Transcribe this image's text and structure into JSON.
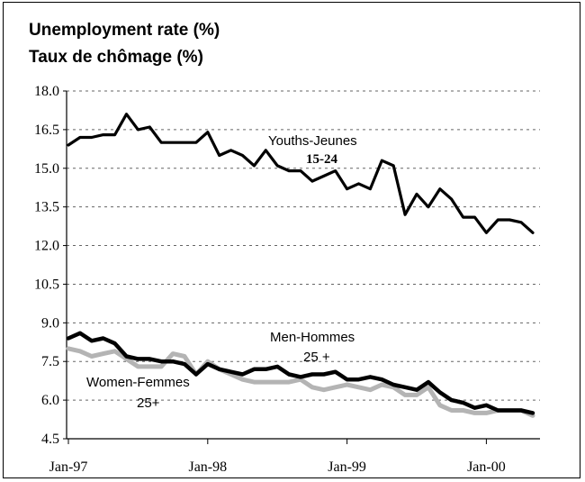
{
  "chart_data": {
    "type": "line",
    "title": "Unemployment rate (%)",
    "subtitle": "Taux de chômage (%)",
    "xlabel": "",
    "ylabel": "",
    "ylim": [
      4.5,
      18.0
    ],
    "y_ticks": [
      "18.0",
      "16.5",
      "15.0",
      "13.5",
      "12.0",
      "10.5",
      "9.0",
      "7.5",
      "6.0",
      "4.5"
    ],
    "x_tick_labels": [
      "Jan-97",
      "Jan-98",
      "Jan-99",
      "Jan-00"
    ],
    "x_tick_months": [
      0,
      12,
      24,
      36
    ],
    "grid": true,
    "colors": {
      "youths": "#000000",
      "men": "#000000",
      "women": "#b4b4b4"
    },
    "series": [
      {
        "key": "youths",
        "values": [
          15.9,
          16.2,
          16.2,
          16.3,
          16.3,
          17.1,
          16.5,
          16.6,
          16.0,
          16.0,
          16.0,
          16.0,
          16.4,
          15.5,
          15.7,
          15.5,
          15.1,
          15.7,
          15.1,
          14.9,
          14.9,
          14.5,
          14.7,
          14.9,
          14.2,
          14.4,
          14.2,
          15.3,
          15.1,
          13.2,
          14.0,
          13.5,
          14.2,
          13.8,
          13.1,
          13.1,
          12.5,
          13.0,
          13.0,
          12.9,
          12.5
        ]
      },
      {
        "key": "men",
        "values": [
          8.4,
          8.6,
          8.3,
          8.4,
          8.2,
          7.7,
          7.6,
          7.6,
          7.5,
          7.5,
          7.4,
          7.0,
          7.4,
          7.2,
          7.1,
          7.0,
          7.2,
          7.2,
          7.3,
          7.0,
          6.9,
          7.0,
          7.0,
          7.1,
          6.8,
          6.8,
          6.9,
          6.8,
          6.6,
          6.5,
          6.4,
          6.7,
          6.3,
          6.0,
          5.9,
          5.7,
          5.8,
          5.6,
          5.6,
          5.6,
          5.5
        ]
      },
      {
        "key": "women",
        "values": [
          8.0,
          7.9,
          7.7,
          7.8,
          7.9,
          7.6,
          7.3,
          7.3,
          7.3,
          7.8,
          7.7,
          7.0,
          7.5,
          7.2,
          7.0,
          6.8,
          6.7,
          6.7,
          6.7,
          6.7,
          6.8,
          6.5,
          6.4,
          6.5,
          6.6,
          6.5,
          6.4,
          6.6,
          6.5,
          6.2,
          6.2,
          6.5,
          5.8,
          5.6,
          5.6,
          5.5,
          5.5,
          5.6,
          5.6,
          5.6,
          5.4
        ]
      }
    ],
    "annotations": [
      {
        "key": "youths_a",
        "text": "Youths-Jeunes"
      },
      {
        "key": "youths_b",
        "text": "15-24"
      },
      {
        "key": "men_a",
        "text": "Men-Hommes"
      },
      {
        "key": "men_b",
        "text": "25 +"
      },
      {
        "key": "women_a",
        "text": "Women-Femmes"
      },
      {
        "key": "women_b",
        "text": "25+"
      }
    ]
  }
}
